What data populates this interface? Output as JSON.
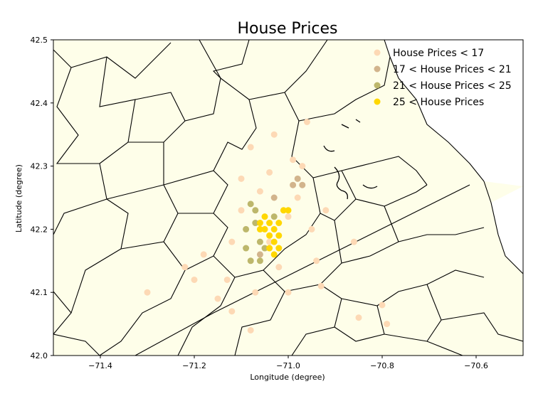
{
  "chart_data": {
    "type": "scatter",
    "title": "House Prices",
    "xlabel": "Longitude (degree)",
    "ylabel": "Latitude (degree)",
    "xlim": [
      -71.5,
      -70.5
    ],
    "ylim": [
      42.0,
      42.5
    ],
    "x_ticks": [
      -71.4,
      -71.2,
      -71.0,
      -70.8,
      -70.6
    ],
    "x_tick_labels": [
      "−71.4",
      "−71.2",
      "−71.0",
      "−70.8",
      "−70.6"
    ],
    "y_ticks": [
      42.0,
      42.1,
      42.2,
      42.3,
      42.4,
      42.5
    ],
    "y_tick_labels": [
      "42.0",
      "42.1",
      "42.2",
      "42.3",
      "42.4",
      "42.5"
    ],
    "grid": false,
    "legend_position": "top-right",
    "background": {
      "type": "town boundary map",
      "land_color": "#fefee9",
      "border_color": "#000000"
    },
    "series": [
      {
        "name": "House Prices < 17",
        "color": "#fdd9b5",
        "points": [
          [
            -71.3,
            42.1
          ],
          [
            -71.22,
            42.14
          ],
          [
            -71.2,
            42.12
          ],
          [
            -71.18,
            42.16
          ],
          [
            -71.15,
            42.09
          ],
          [
            -71.13,
            42.12
          ],
          [
            -71.12,
            42.07
          ],
          [
            -71.12,
            42.18
          ],
          [
            -71.1,
            42.23
          ],
          [
            -71.1,
            42.28
          ],
          [
            -71.08,
            42.04
          ],
          [
            -71.08,
            42.33
          ],
          [
            -71.07,
            42.1
          ],
          [
            -71.06,
            42.26
          ],
          [
            -71.04,
            42.29
          ],
          [
            -71.04,
            42.18
          ],
          [
            -71.03,
            42.35
          ],
          [
            -71.02,
            42.14
          ],
          [
            -71.0,
            42.22
          ],
          [
            -71.0,
            42.1
          ],
          [
            -70.99,
            42.31
          ],
          [
            -70.98,
            42.25
          ],
          [
            -70.97,
            42.3
          ],
          [
            -70.96,
            42.37
          ],
          [
            -70.95,
            42.2
          ],
          [
            -70.94,
            42.15
          ],
          [
            -70.93,
            42.11
          ],
          [
            -70.92,
            42.23
          ],
          [
            -70.86,
            42.18
          ],
          [
            -70.85,
            42.06
          ],
          [
            -70.8,
            42.08
          ],
          [
            -70.79,
            42.05
          ]
        ]
      },
      {
        "name": "17 < House Prices < 21",
        "color": "#d2b48c",
        "points": [
          [
            -70.99,
            42.27
          ],
          [
            -70.98,
            42.28
          ],
          [
            -70.97,
            42.27
          ],
          [
            -71.03,
            42.25
          ],
          [
            -71.06,
            42.16
          ]
        ]
      },
      {
        "name": "21 < House Prices < 25",
        "color": "#bdb76b",
        "points": [
          [
            -71.08,
            42.24
          ],
          [
            -71.07,
            42.23
          ],
          [
            -71.09,
            42.2
          ],
          [
            -71.07,
            42.21
          ],
          [
            -71.06,
            42.18
          ],
          [
            -71.08,
            42.15
          ],
          [
            -71.05,
            42.17
          ],
          [
            -71.03,
            42.22
          ],
          [
            -71.09,
            42.17
          ],
          [
            -71.06,
            42.15
          ]
        ]
      },
      {
        "name": "25 < House Prices",
        "color": "#ffd700",
        "points": [
          [
            -71.05,
            42.22
          ],
          [
            -71.04,
            42.21
          ],
          [
            -71.04,
            42.19
          ],
          [
            -71.03,
            42.2
          ],
          [
            -71.02,
            42.21
          ],
          [
            -71.03,
            42.18
          ],
          [
            -71.02,
            42.17
          ],
          [
            -71.04,
            42.17
          ],
          [
            -71.05,
            42.2
          ],
          [
            -71.01,
            42.23
          ],
          [
            -71.0,
            42.23
          ],
          [
            -71.02,
            42.19
          ],
          [
            -71.06,
            42.2
          ],
          [
            -71.03,
            42.16
          ],
          [
            -71.06,
            42.21
          ]
        ]
      }
    ]
  }
}
